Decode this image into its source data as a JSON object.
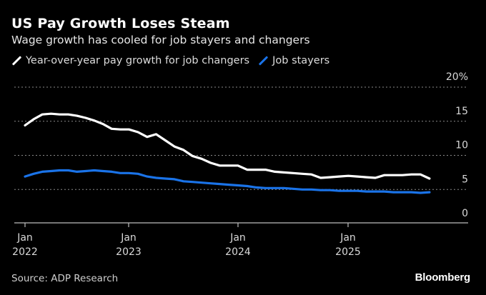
{
  "header": {
    "title": "US Pay Growth Loses Steam",
    "subtitle": "Wage growth has cooled for job stayers and changers"
  },
  "footer": {
    "source": "Source: ADP Research",
    "brand": "Bloomberg"
  },
  "colors": {
    "background": "#000000",
    "changers": "#ffffff",
    "stayers": "#1a73e8",
    "grid": "#8a8a8a",
    "axis": "#bdbdbd",
    "tick_label": "#d9d9d9"
  },
  "chart_data": {
    "type": "line",
    "title": "US Pay Growth Loses Steam",
    "subtitle": "Wage growth has cooled for job stayers and changers",
    "xlabel": "",
    "ylabel": "",
    "y_unit": "%",
    "ylim": [
      0,
      20
    ],
    "y_ticks": [
      0,
      5,
      10,
      15,
      20
    ],
    "y_tick_labels": [
      "0",
      "5",
      "10",
      "15",
      "20%"
    ],
    "x_ticks": [
      {
        "index": 0,
        "label_line1": "Jan",
        "label_line2": "2022"
      },
      {
        "index": 12,
        "label_line1": "Jan",
        "label_line2": "2023"
      },
      {
        "index": 24,
        "label_line1": "Jan",
        "label_line2": "2024"
      },
      {
        "index": 36,
        "label_line1": "Jan",
        "label_line2": "2025"
      }
    ],
    "x_range_months": [
      0,
      45
    ],
    "x_axis_end_months": 49,
    "grid": true,
    "legend_position": "top-left",
    "x": [
      "2022-01",
      "2022-02",
      "2022-03",
      "2022-04",
      "2022-05",
      "2022-06",
      "2022-07",
      "2022-08",
      "2022-09",
      "2022-10",
      "2022-11",
      "2022-12",
      "2023-01",
      "2023-02",
      "2023-03",
      "2023-04",
      "2023-05",
      "2023-06",
      "2023-07",
      "2023-08",
      "2023-09",
      "2023-10",
      "2023-11",
      "2023-12",
      "2024-01",
      "2024-02",
      "2024-03",
      "2024-04",
      "2024-05",
      "2024-06",
      "2024-07",
      "2024-08",
      "2024-09",
      "2024-10",
      "2024-11",
      "2024-12",
      "2025-01",
      "2025-02",
      "2025-03",
      "2025-04",
      "2025-05",
      "2025-06",
      "2025-07",
      "2025-08",
      "2025-09",
      "2025-10"
    ],
    "series": [
      {
        "name": "Year-over-year pay growth for job changers",
        "color": "#ffffff",
        "values": [
          14.4,
          15.3,
          16.0,
          16.1,
          16.0,
          16.0,
          15.8,
          15.5,
          15.1,
          14.6,
          13.9,
          13.8,
          13.8,
          13.4,
          12.7,
          13.1,
          12.2,
          11.3,
          10.8,
          9.9,
          9.5,
          8.9,
          8.5,
          8.5,
          8.5,
          7.9,
          7.9,
          7.9,
          7.6,
          7.5,
          7.4,
          7.3,
          7.2,
          6.7,
          6.8,
          6.9,
          7.0,
          6.9,
          6.8,
          6.7,
          7.1,
          7.1,
          7.1,
          7.2,
          7.2,
          6.6
        ]
      },
      {
        "name": "Job stayers",
        "color": "#1a73e8",
        "values": [
          6.9,
          7.3,
          7.6,
          7.7,
          7.8,
          7.8,
          7.6,
          7.7,
          7.8,
          7.7,
          7.6,
          7.4,
          7.4,
          7.3,
          6.9,
          6.7,
          6.6,
          6.5,
          6.2,
          6.1,
          6.0,
          5.9,
          5.8,
          5.7,
          5.6,
          5.5,
          5.3,
          5.2,
          5.2,
          5.2,
          5.1,
          5.0,
          5.0,
          4.9,
          4.9,
          4.8,
          4.8,
          4.8,
          4.7,
          4.7,
          4.7,
          4.6,
          4.6,
          4.6,
          4.5,
          4.6
        ]
      }
    ]
  }
}
